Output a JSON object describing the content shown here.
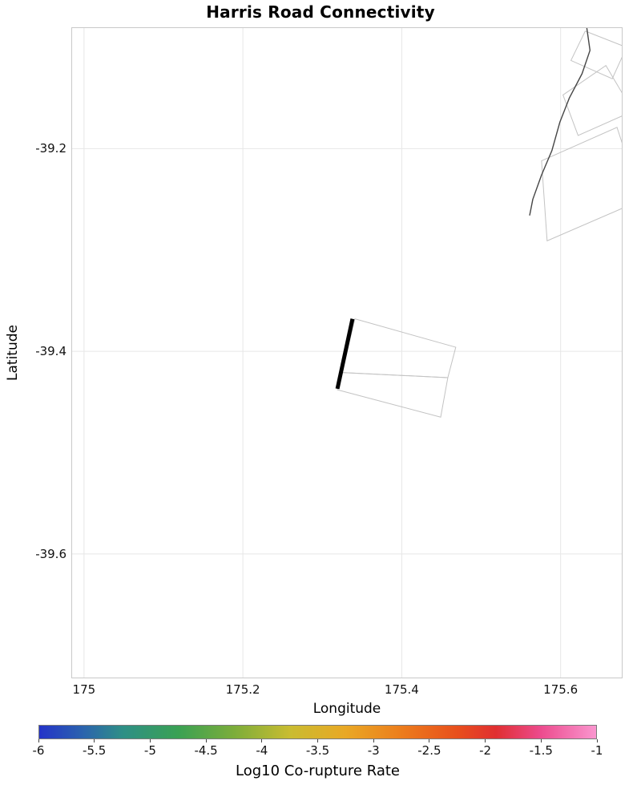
{
  "chart_data": {
    "type": "map",
    "title": "Harris Road Connectivity",
    "xlabel": "Longitude",
    "ylabel": "Latitude",
    "xlim": [
      174.985,
      175.677
    ],
    "ylim": [
      -39.722,
      -39.081
    ],
    "grid": true,
    "x_ticks": [
      {
        "value": 175.0,
        "label": "175"
      },
      {
        "value": 175.2,
        "label": "175.2"
      },
      {
        "value": 175.4,
        "label": "175.4"
      },
      {
        "value": 175.6,
        "label": "175.6"
      }
    ],
    "y_ticks": [
      {
        "value": -39.2,
        "label": "-39.2"
      },
      {
        "value": -39.4,
        "label": "-39.4"
      },
      {
        "value": -39.6,
        "label": "-39.6"
      }
    ],
    "features": {
      "highlighted_fault": {
        "name": "Harris Road",
        "color": "#000000",
        "line_width": 5,
        "points": [
          [
            175.338,
            -39.368
          ],
          [
            175.319,
            -39.437
          ]
        ]
      },
      "secondary_fault_trace": {
        "color": "#454545",
        "line_width": 1.4,
        "points": [
          [
            175.633,
            -39.081
          ],
          [
            175.637,
            -39.103
          ],
          [
            175.627,
            -39.126
          ],
          [
            175.611,
            -39.15
          ],
          [
            175.599,
            -39.174
          ],
          [
            175.589,
            -39.202
          ],
          [
            175.576,
            -39.226
          ],
          [
            175.565,
            -39.25
          ],
          [
            175.561,
            -39.266
          ]
        ]
      },
      "fault_outline_polygons": [
        {
          "points": [
            [
              175.341,
              -39.368
            ],
            [
              175.468,
              -39.396
            ],
            [
              175.458,
              -39.426
            ],
            [
              175.325,
              -39.421
            ]
          ]
        },
        {
          "points": [
            [
              175.325,
              -39.421
            ],
            [
              175.458,
              -39.426
            ],
            [
              175.449,
              -39.465
            ],
            [
              175.319,
              -39.438
            ]
          ]
        },
        {
          "points": [
            [
              175.613,
              -39.113
            ],
            [
              175.631,
              -39.084
            ],
            [
              175.683,
              -39.1
            ],
            [
              175.665,
              -39.131
            ]
          ]
        },
        {
          "points": [
            [
              175.603,
              -39.147
            ],
            [
              175.657,
              -39.118
            ],
            [
              175.691,
              -39.163
            ],
            [
              175.622,
              -39.187
            ]
          ]
        },
        {
          "points": [
            [
              175.576,
              -39.212
            ],
            [
              175.671,
              -39.179
            ],
            [
              175.701,
              -39.251
            ],
            [
              175.583,
              -39.291
            ]
          ]
        }
      ]
    },
    "colorbar": {
      "label": "Log10 Co-rupture Rate",
      "min": -6,
      "max": -1,
      "tick_labels": [
        "-6",
        "-5.5",
        "-5",
        "-4.5",
        "-4",
        "-3.5",
        "-3",
        "-2.5",
        "-2",
        "-1.5",
        "-1"
      ],
      "gradient_stops": [
        {
          "pos": 0,
          "color": "#2433c8"
        },
        {
          "pos": 8,
          "color": "#2b64ad"
        },
        {
          "pos": 15,
          "color": "#2e8f86"
        },
        {
          "pos": 25,
          "color": "#3aa153"
        },
        {
          "pos": 35,
          "color": "#7cad3a"
        },
        {
          "pos": 45,
          "color": "#c9bc31"
        },
        {
          "pos": 55,
          "color": "#e9a825"
        },
        {
          "pos": 65,
          "color": "#ec7d1c"
        },
        {
          "pos": 75,
          "color": "#e84f1c"
        },
        {
          "pos": 82,
          "color": "#e02f31"
        },
        {
          "pos": 90,
          "color": "#ec4b8d"
        },
        {
          "pos": 100,
          "color": "#fa96cf"
        }
      ]
    }
  }
}
